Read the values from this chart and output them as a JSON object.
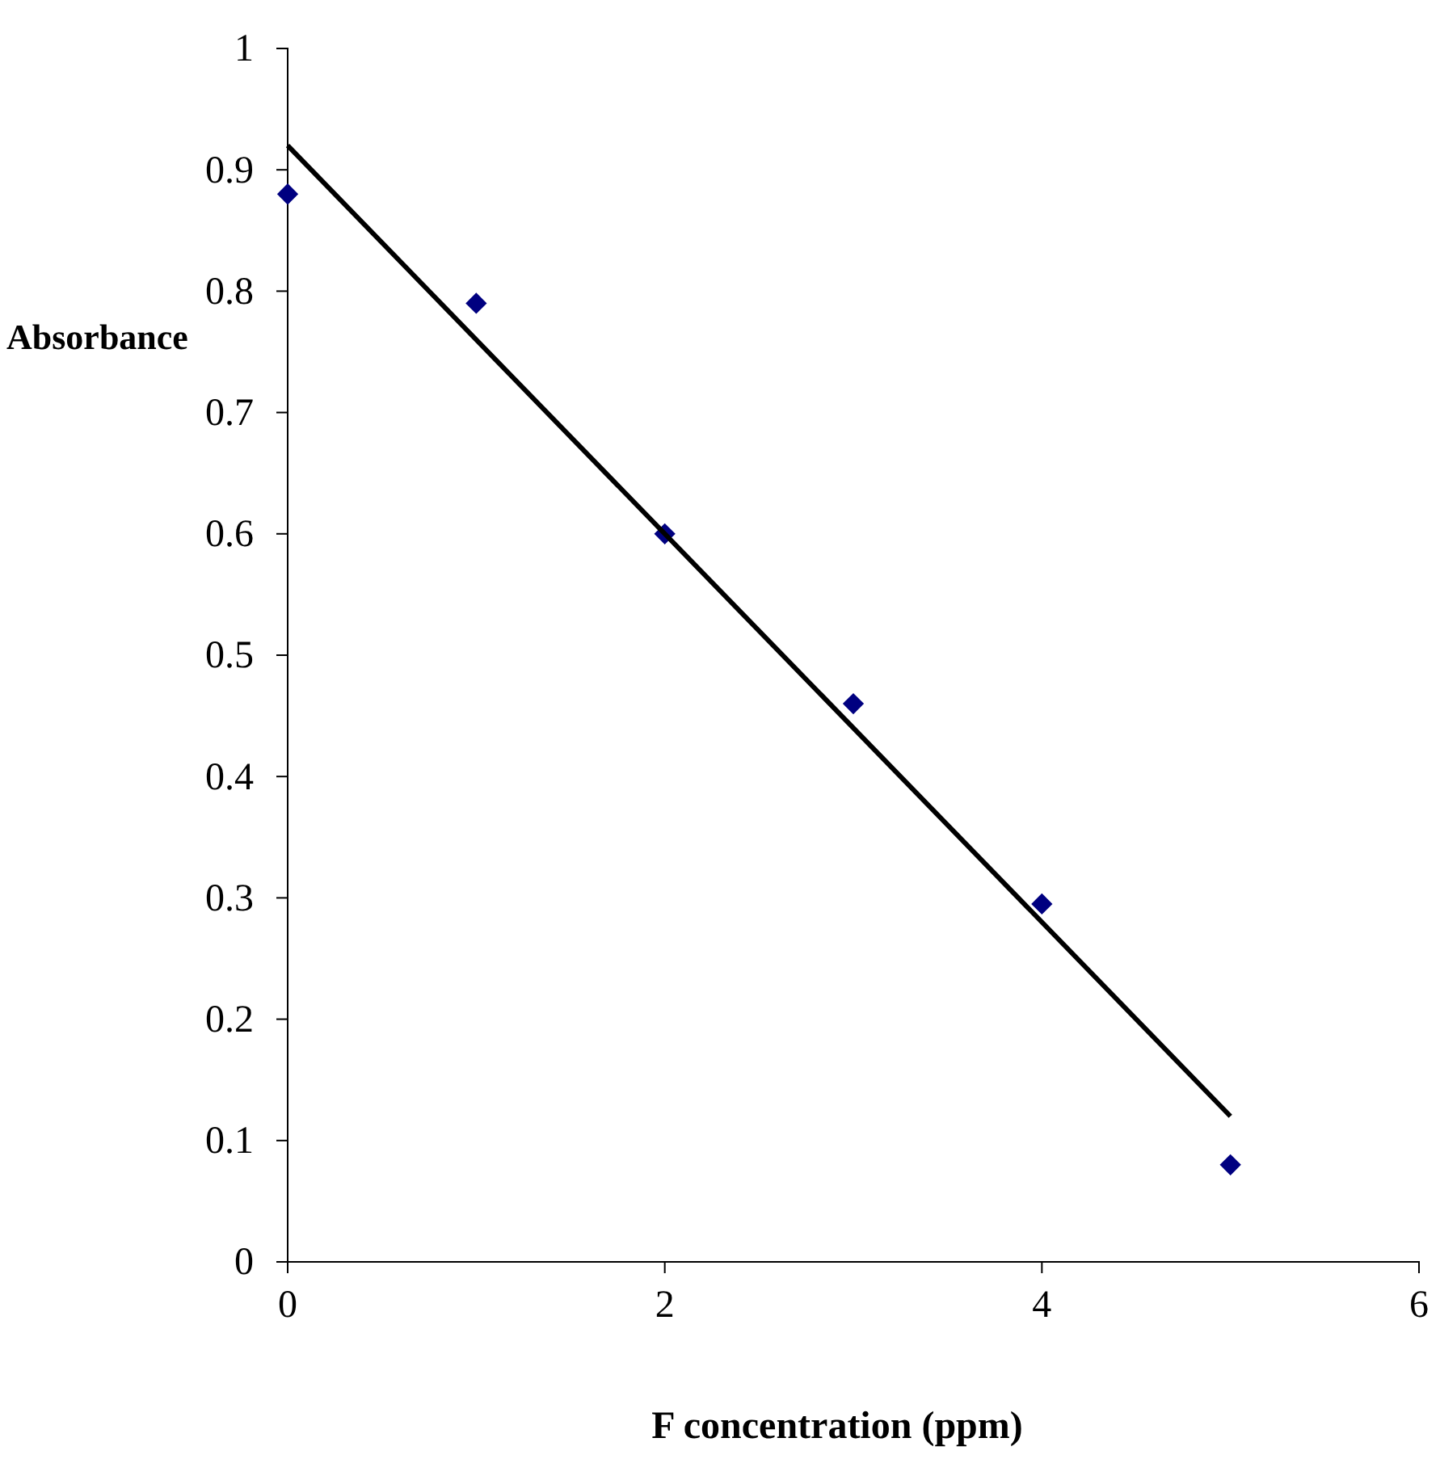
{
  "chart_data": {
    "type": "scatter",
    "xlabel": "F concentration (ppm)",
    "ylabel": "Absorbance",
    "xlim": [
      0,
      6
    ],
    "xticks": [
      0,
      2,
      4,
      6
    ],
    "ylim": [
      0,
      1
    ],
    "yticks": [
      0,
      0.1,
      0.2,
      0.3,
      0.4,
      0.5,
      0.6,
      0.7,
      0.8,
      0.9,
      1
    ],
    "grid": false,
    "marker": "diamond",
    "series": [
      {
        "color": "#000080",
        "x": [
          0,
          1,
          2,
          3,
          4,
          5
        ],
        "values": [
          0.88,
          0.79,
          0.6,
          0.46,
          0.295,
          0.08
        ]
      },
      {
        "type": "line",
        "color": "#000000",
        "x": [
          0,
          5
        ],
        "values": [
          0.92,
          0.12
        ],
        "marker": "none",
        "line_style": "solid"
      }
    ]
  }
}
